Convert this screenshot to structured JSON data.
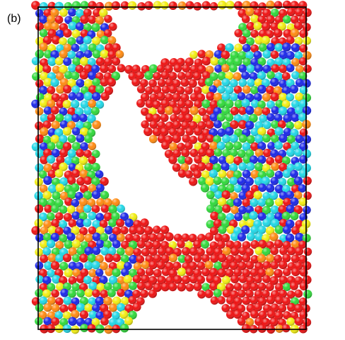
{
  "panel_label": "(b)",
  "palette": {
    "red": "#ee1111",
    "orange": "#ff8a10",
    "yellow": "#f2ee10",
    "green": "#2fd93a",
    "cyan": "#20d7e6",
    "blue": "#1a26e8",
    "frame": "#000000"
  }
}
